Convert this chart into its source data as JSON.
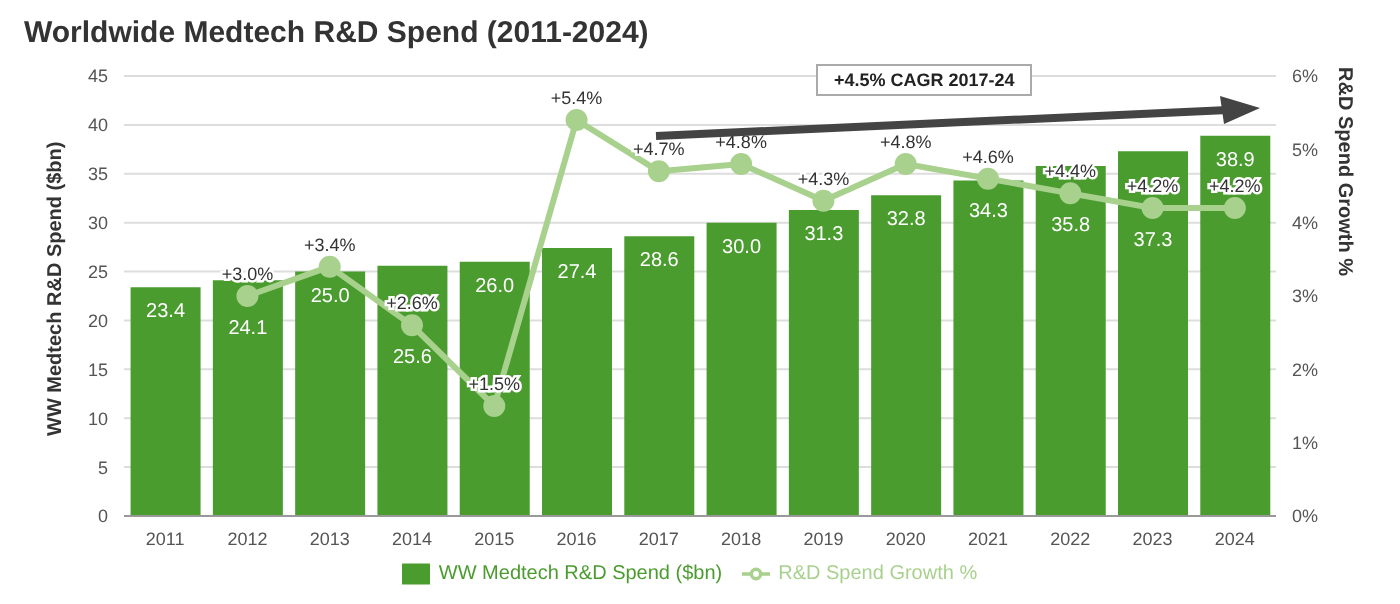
{
  "chart_data": {
    "type": "bar",
    "title": "Worldwide Medtech R&D Spend (2011-2024)",
    "categories": [
      "2011",
      "2012",
      "2013",
      "2014",
      "2015",
      "2016",
      "2017",
      "2018",
      "2019",
      "2020",
      "2021",
      "2022",
      "2023",
      "2024"
    ],
    "series": [
      {
        "name": "WW Medtech R&D Spend ($bn)",
        "color": "#4a9c2f",
        "values": [
          23.4,
          24.1,
          25.0,
          25.6,
          26.0,
          27.4,
          28.6,
          30.0,
          31.3,
          32.8,
          34.3,
          35.8,
          37.3,
          38.9
        ],
        "value_labels": [
          "23.4",
          "24.1",
          "25.0",
          "25.6",
          "26.0",
          "27.4",
          "28.6",
          "30.0",
          "31.3",
          "32.8",
          "34.3",
          "35.8",
          "37.3",
          "38.9"
        ]
      },
      {
        "name": "R&D Spend Growth %",
        "type": "line",
        "axis": "y2",
        "color": "#a9d18e",
        "values": [
          null,
          3.0,
          3.4,
          2.6,
          1.5,
          5.4,
          4.7,
          4.8,
          4.3,
          4.8,
          4.6,
          4.4,
          4.2,
          4.2
        ],
        "value_labels": [
          null,
          "+3.0%",
          "+3.4%",
          "+2.6%",
          "+1.5%",
          "+5.4%",
          "+4.7%",
          "+4.8%",
          "+4.3%",
          "+4.8%",
          "+4.6%",
          "+4.4%",
          "+4.2%",
          "+4.2%"
        ]
      }
    ],
    "ylabel": "WW Medtech R&D Spend ($bn)",
    "y2label": "R&D Spend Growth %",
    "ylim": [
      0,
      45
    ],
    "yticks": [
      0,
      5,
      10,
      15,
      20,
      25,
      30,
      35,
      40,
      45
    ],
    "y2lim": [
      0,
      6
    ],
    "y2ticks": [
      {
        "value": 0,
        "label": "0%"
      },
      {
        "value": 1,
        "label": "1%"
      },
      {
        "value": 2,
        "label": "2%"
      },
      {
        "value": 3,
        "label": "3%"
      },
      {
        "value": 4,
        "label": "4%"
      },
      {
        "value": 5,
        "label": "5%"
      },
      {
        "value": 6,
        "label": "6%"
      }
    ],
    "annotations": [
      "+4.5% CAGR 2017-24"
    ],
    "grid": "y",
    "legend": "bottom",
    "marker": "circle"
  }
}
